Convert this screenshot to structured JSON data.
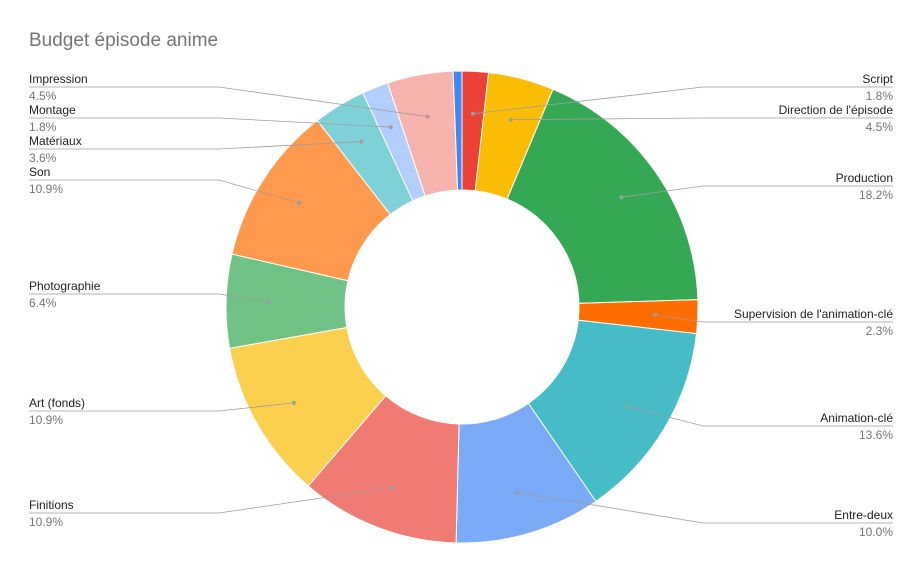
{
  "chart_data": {
    "type": "pie",
    "donut": true,
    "title": "Budget épisode anime",
    "legend": "labels beside slices",
    "slices": [
      {
        "name": "Script",
        "value": 1.8,
        "pct_label": "1.8%",
        "color": "#ea4335"
      },
      {
        "name": "Direction de l'épisode",
        "value": 4.5,
        "pct_label": "4.5%",
        "color": "#fbbc04"
      },
      {
        "name": "Production",
        "value": 18.2,
        "pct_label": "18.2%",
        "color": "#34a853"
      },
      {
        "name": "Supervision de l'animation-clé",
        "value": 2.3,
        "pct_label": "2.3%",
        "color": "#ff6d01"
      },
      {
        "name": "Animation-clé",
        "value": 13.6,
        "pct_label": "13.6%",
        "color": "#46bdc6"
      },
      {
        "name": "Entre-deux",
        "value": 10.0,
        "pct_label": "10.0%",
        "color": "#7baaf7"
      },
      {
        "name": "Finitions",
        "value": 10.9,
        "pct_label": "10.9%",
        "color": "#f07b72"
      },
      {
        "name": "Art (fonds)",
        "value": 10.9,
        "pct_label": "10.9%",
        "color": "#fcd04f"
      },
      {
        "name": "Photographie",
        "value": 6.4,
        "pct_label": "6.4%",
        "color": "#71c287"
      },
      {
        "name": "Son",
        "value": 10.9,
        "pct_label": "10.9%",
        "color": "#ff994d"
      },
      {
        "name": "Matériaux",
        "value": 3.6,
        "pct_label": "3.6%",
        "color": "#7ed1d7"
      },
      {
        "name": "Montage",
        "value": 1.8,
        "pct_label": "1.8%",
        "color": "#b3cefb"
      },
      {
        "name": "Impression",
        "value": 4.5,
        "pct_label": "4.5%",
        "color": "#f7b4ae"
      },
      {
        "name": "",
        "value": 0.6,
        "pct_label": "",
        "color": "#4285f4"
      }
    ]
  }
}
